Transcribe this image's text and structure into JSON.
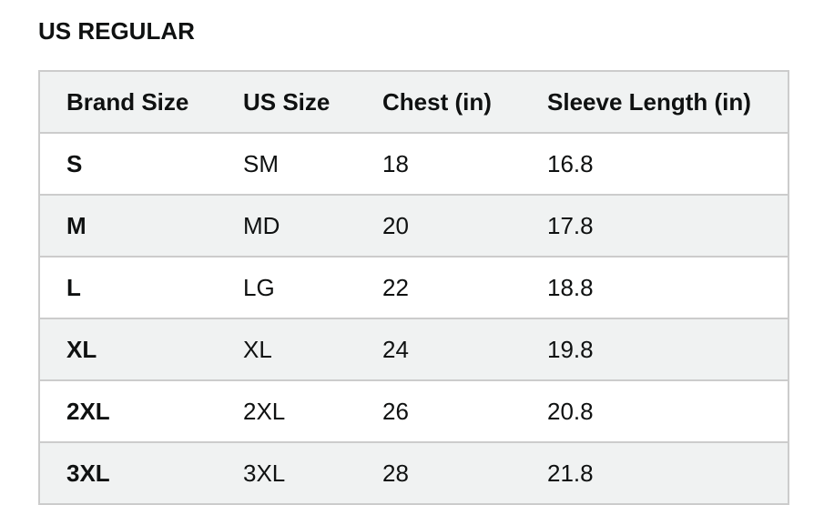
{
  "header": {
    "title": "US REGULAR"
  },
  "table": {
    "columns": [
      "Brand Size",
      "US Size",
      "Chest (in)",
      "Sleeve Length (in)"
    ],
    "rows": [
      [
        "S",
        "SM",
        "18",
        "16.8"
      ],
      [
        "M",
        "MD",
        "20",
        "17.8"
      ],
      [
        "L",
        "LG",
        "22",
        "18.8"
      ],
      [
        "XL",
        "XL",
        "24",
        "19.8"
      ],
      [
        "2XL",
        "2XL",
        "26",
        "20.8"
      ],
      [
        "3XL",
        "3XL",
        "28",
        "21.8"
      ]
    ]
  }
}
